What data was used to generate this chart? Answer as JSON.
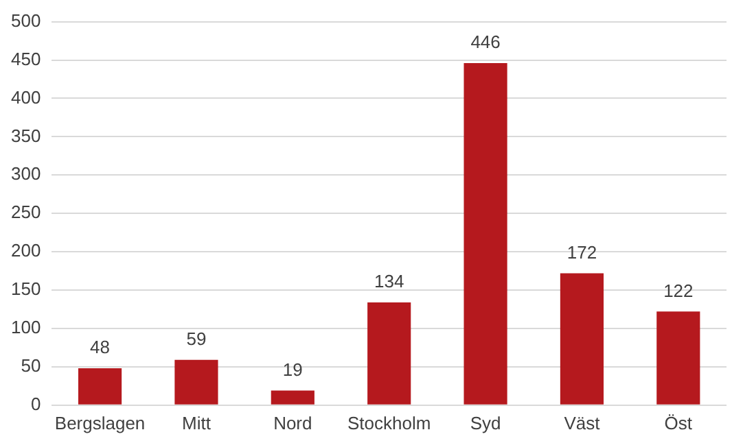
{
  "chart_data": {
    "type": "bar",
    "categories": [
      "Bergslagen",
      "Mitt",
      "Nord",
      "Stockholm",
      "Syd",
      "Väst",
      "Öst"
    ],
    "values": [
      48,
      59,
      19,
      134,
      446,
      172,
      122
    ],
    "color": "#b5191e",
    "ylim": [
      0,
      500
    ],
    "yticks": [
      0,
      50,
      100,
      150,
      200,
      250,
      300,
      350,
      400,
      450,
      500
    ],
    "grid": "y",
    "data_labels": true
  }
}
